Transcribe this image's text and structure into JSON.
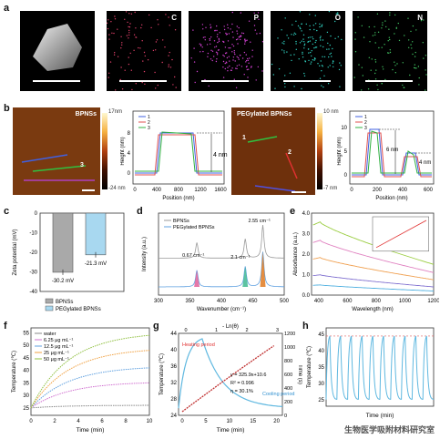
{
  "panels": {
    "a": "a",
    "b": "b",
    "c": "c",
    "d": "d",
    "e": "e",
    "f": "f",
    "g": "g",
    "h": "h"
  },
  "panel_a": {
    "maps": [
      "",
      "C",
      "P",
      "O",
      "N"
    ],
    "colors": [
      "#cccccc",
      "#e0406a",
      "#d040d0",
      "#30d0c0",
      "#40c060"
    ]
  },
  "panel_b": {
    "left_image_label": "BPNSs",
    "left_bar": {
      "top": "17nm",
      "bottom": "-24 nm"
    },
    "right_image_label": "PEGylated BPNSs",
    "right_bar": {
      "top": "10 nm",
      "bottom": "-7 nm"
    },
    "line_labels_left": [
      "1",
      "2",
      "3"
    ],
    "line_labels_right": [
      "1",
      "2",
      "3"
    ],
    "plot1": {
      "ylabel": "Height (nm)",
      "xlabel": "Position (nm)",
      "legend": [
        "1",
        "2",
        "3"
      ],
      "annotation": "4 nm",
      "xticks": [
        "0",
        "400",
        "800",
        "1200",
        "1600"
      ],
      "yticks": [
        "8",
        "4",
        "0"
      ]
    },
    "plot2": {
      "ylabel": "Height (nm)",
      "xlabel": "Position (nm)",
      "legend": [
        "1",
        "2",
        "3"
      ],
      "ann1": "6 nm",
      "ann2": "4 nm",
      "xticks": [
        "0",
        "200",
        "400",
        "600"
      ],
      "yticks": [
        "10",
        "5",
        "0"
      ]
    }
  },
  "chart_data": [
    {
      "panel": "c",
      "type": "bar",
      "ylabel": "Zeta potential (mV)",
      "categories": [
        "BPNSs",
        "PEGylated BPNSs"
      ],
      "values": [
        -30.2,
        -21.3
      ],
      "data_labels": [
        "-30.2 mV",
        "-21.3 mV"
      ],
      "colors": [
        "#a9a9a9",
        "#a8d8f0"
      ],
      "yticks": [
        "0",
        "-10",
        "-20",
        "-30",
        "-40"
      ],
      "ylim": [
        -40,
        0
      ]
    },
    {
      "panel": "d",
      "type": "line",
      "xlabel": "Wavenumber (cm⁻¹)",
      "ylabel": "Intensity (a.u.)",
      "legend": [
        "BPNSs",
        "PEGylated BPNSs"
      ],
      "peaks": [
        {
          "x": 361,
          "label": "0.67 cm⁻¹",
          "color": "#e0609a"
        },
        {
          "x": 438,
          "label": "2.1 cm⁻¹",
          "color": "#40b890"
        },
        {
          "x": 466,
          "label": "2.55 cm⁻¹",
          "color": "#e07a20"
        }
      ],
      "xticks": [
        "300",
        "350",
        "400",
        "450",
        "500"
      ],
      "xlim": [
        300,
        500
      ]
    },
    {
      "panel": "e",
      "type": "line",
      "xlabel": "Wavelength (nm)",
      "ylabel": "Absorbance (a.u.)",
      "xticks": [
        "400",
        "500",
        "600",
        "700",
        "800",
        "900",
        "1000",
        "1100",
        "1200"
      ],
      "yticks": [
        "0.0",
        "0.5",
        "1.0",
        "1.5",
        "2.0",
        "2.5",
        "3.0",
        "3.5",
        "4.0"
      ],
      "xlim": [
        350,
        1200
      ],
      "ylim": [
        0,
        4
      ],
      "series": [
        {
          "values_at_400": 3.6,
          "values_at_1200": 1.5,
          "color": "#9acd40"
        },
        {
          "values_at_400": 2.7,
          "values_at_1200": 1.1,
          "color": "#e080c0"
        },
        {
          "values_at_400": 1.85,
          "values_at_1200": 0.75,
          "color": "#f0a050"
        },
        {
          "values_at_400": 1.0,
          "values_at_1200": 0.4,
          "color": "#8070d0"
        },
        {
          "values_at_400": 0.5,
          "values_at_1200": 0.2,
          "color": "#50b0e0"
        }
      ]
    },
    {
      "panel": "f",
      "type": "line",
      "xlabel": "Time (min)",
      "ylabel": "Temperature (℃)",
      "legend": [
        "water",
        "6.25 μg mL⁻¹",
        "12.5 μg mL⁻¹",
        "25 μg mL⁻¹",
        "50 μg mL⁻¹"
      ],
      "xticks": [
        "0",
        "2",
        "4",
        "6",
        "8",
        "10"
      ],
      "yticks": [
        "25",
        "30",
        "35",
        "40",
        "45",
        "50",
        "55"
      ],
      "xlim": [
        0,
        10
      ],
      "ylim": [
        22,
        57
      ],
      "series": [
        {
          "name": "water",
          "final": 26,
          "color": "#888888"
        },
        {
          "name": "6.25",
          "final": 35,
          "color": "#d070d0"
        },
        {
          "name": "12.5",
          "final": 41,
          "color": "#5fa0e0"
        },
        {
          "name": "25",
          "final": 48,
          "color": "#f0a040"
        },
        {
          "name": "50",
          "final": 54,
          "color": "#90c040"
        }
      ]
    },
    {
      "panel": "g",
      "type": "line",
      "xlabel": "Time (min)",
      "ylabel": "Temperature (℃)",
      "y2label": "Time (s)",
      "top_label": "- Ln(θ)",
      "annotations": [
        "Heating period",
        "Cooling period",
        "y = 325.9x+10.6",
        "R² = 0.996",
        "η = 30.1%"
      ],
      "xticks": [
        "0",
        "5",
        "10",
        "15",
        "20"
      ],
      "yticks": [
        "24",
        "28",
        "32",
        "36",
        "40",
        "44"
      ],
      "y2ticks": [
        "0",
        "200",
        "400",
        "600",
        "800",
        "1000",
        "1200"
      ],
      "topticks": [
        "0",
        "1",
        "2",
        "3"
      ]
    },
    {
      "panel": "h",
      "type": "line",
      "xlabel": "Time (min)",
      "ylabel": "Temperature (℃)",
      "yticks": [
        "25",
        "30",
        "35",
        "40",
        "45"
      ],
      "ylim": [
        23,
        47
      ],
      "cycles": 10,
      "max": 44.5,
      "min": 25
    }
  ],
  "watermark": "生物医学吸附材料研究室"
}
